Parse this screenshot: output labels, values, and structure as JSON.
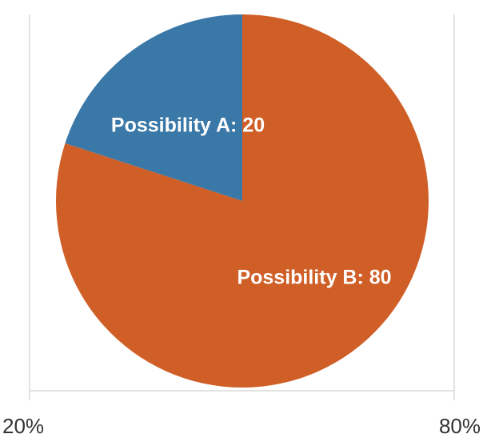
{
  "chart_data": {
    "type": "pie",
    "categories": [
      "Possibility A",
      "Possibility B"
    ],
    "values": [
      20,
      80
    ],
    "colors": [
      "#3a78a8",
      "#d05f27"
    ],
    "slice_labels": [
      "Possibility A: 20",
      "Possibility B: 80"
    ],
    "x_tick_labels": [
      "20%",
      "80%"
    ],
    "title": "",
    "xlabel": "",
    "ylabel": "",
    "grid": true,
    "legend": "none"
  }
}
